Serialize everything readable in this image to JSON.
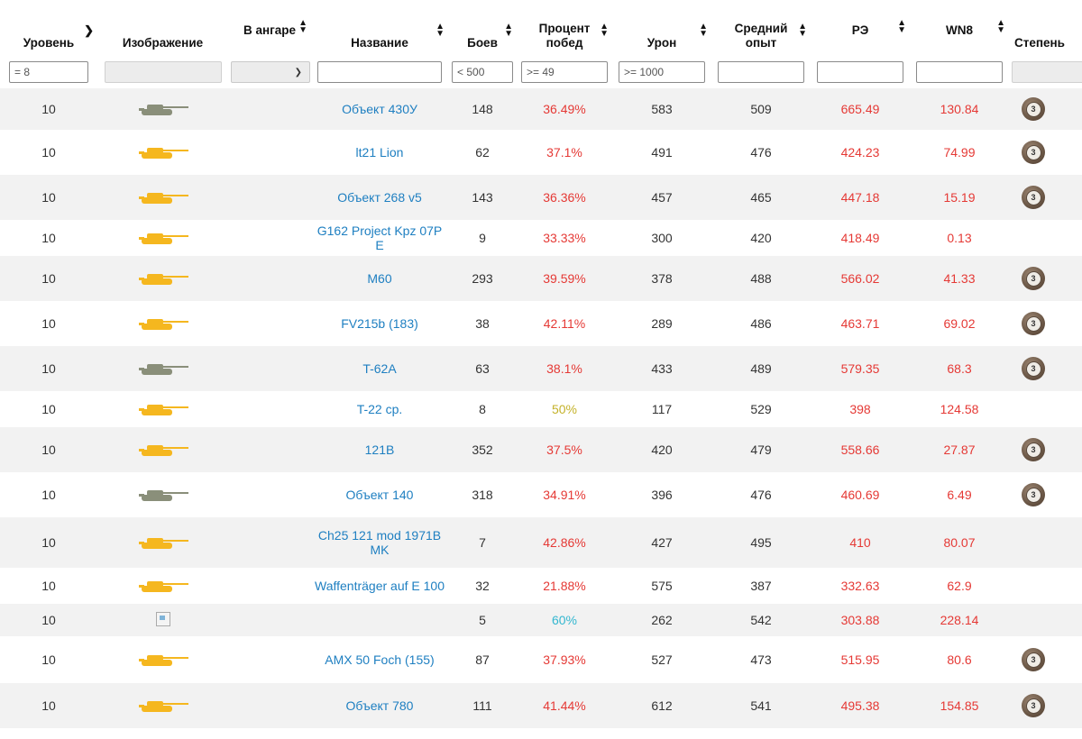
{
  "headers": {
    "level": "Уровень",
    "image": "Изображение",
    "in_hangar": "В ангаре",
    "name": "Название",
    "battles": "Боев",
    "win_pct_1": "Процент",
    "win_pct_2": "побед",
    "damage": "Урон",
    "avg_exp_1": "Средний",
    "avg_exp_2": "опыт",
    "re": "РЭ",
    "wn8": "WN8",
    "mastery": "Степень"
  },
  "filters": {
    "level": "= 8",
    "battles": "< 500",
    "win_pct": ">= 49",
    "damage": ">= 1000"
  },
  "rows": [
    {
      "level": "10",
      "name": "Объект 430У",
      "battles": "148",
      "win": "36.49%",
      "damage": "583",
      "exp": "509",
      "re": "665.49",
      "wn8": "130.84",
      "mastery": "3",
      "tank": "gray"
    },
    {
      "level": "10",
      "name": "lt21 Lion",
      "battles": "62",
      "win": "37.1%",
      "damage": "491",
      "exp": "476",
      "re": "424.23",
      "wn8": "74.99",
      "mastery": "3",
      "tank": "gold"
    },
    {
      "level": "10",
      "name": "Объект 268 v5",
      "battles": "143",
      "win": "36.36%",
      "damage": "457",
      "exp": "465",
      "re": "447.18",
      "wn8": "15.19",
      "mastery": "3",
      "tank": "gold"
    },
    {
      "level": "10",
      "name": "G162 Project Kpz 07P E",
      "battles": "9",
      "win": "33.33%",
      "damage": "300",
      "exp": "420",
      "re": "418.49",
      "wn8": "0.13",
      "mastery": "",
      "tank": "gold"
    },
    {
      "level": "10",
      "name": "M60",
      "battles": "293",
      "win": "39.59%",
      "damage": "378",
      "exp": "488",
      "re": "566.02",
      "wn8": "41.33",
      "mastery": "3",
      "tank": "gold"
    },
    {
      "level": "10",
      "name": "FV215b (183)",
      "battles": "38",
      "win": "42.11%",
      "damage": "289",
      "exp": "486",
      "re": "463.71",
      "wn8": "69.02",
      "mastery": "3",
      "tank": "gold"
    },
    {
      "level": "10",
      "name": "T-62A",
      "battles": "63",
      "win": "38.1%",
      "damage": "433",
      "exp": "489",
      "re": "579.35",
      "wn8": "68.3",
      "mastery": "3",
      "tank": "gray"
    },
    {
      "level": "10",
      "name": "T-22 ср.",
      "battles": "8",
      "win": "50%",
      "damage": "117",
      "exp": "529",
      "re": "398",
      "wn8": "124.58",
      "mastery": "",
      "tank": "gold"
    },
    {
      "level": "10",
      "name": "121B",
      "battles": "352",
      "win": "37.5%",
      "damage": "420",
      "exp": "479",
      "re": "558.66",
      "wn8": "27.87",
      "mastery": "3",
      "tank": "gold"
    },
    {
      "level": "10",
      "name": "Объект 140",
      "battles": "318",
      "win": "34.91%",
      "damage": "396",
      "exp": "476",
      "re": "460.69",
      "wn8": "6.49",
      "mastery": "3",
      "tank": "gray"
    },
    {
      "level": "10",
      "name": "Ch25 121 mod 1971B MK",
      "battles": "7",
      "win": "42.86%",
      "damage": "427",
      "exp": "495",
      "re": "410",
      "wn8": "80.07",
      "mastery": "",
      "tank": "gold"
    },
    {
      "level": "10",
      "name": "Waffenträger auf E 100",
      "battles": "32",
      "win": "21.88%",
      "damage": "575",
      "exp": "387",
      "re": "332.63",
      "wn8": "62.9",
      "mastery": "",
      "tank": "gold"
    },
    {
      "level": "10",
      "name": "",
      "battles": "5",
      "win": "60%",
      "damage": "262",
      "exp": "542",
      "re": "303.88",
      "wn8": "228.14",
      "mastery": "",
      "tank": "broken"
    },
    {
      "level": "10",
      "name": "AMX 50 Foch (155)",
      "battles": "87",
      "win": "37.93%",
      "damage": "527",
      "exp": "473",
      "re": "515.95",
      "wn8": "80.6",
      "mastery": "3",
      "tank": "gold"
    },
    {
      "level": "10",
      "name": "Объект 780",
      "battles": "111",
      "win": "41.44%",
      "damage": "612",
      "exp": "541",
      "re": "495.38",
      "wn8": "154.85",
      "mastery": "3",
      "tank": "gold"
    }
  ],
  "colors": {
    "name_link": "#1e7fc1",
    "stat_bad": "#e53935",
    "stat_avg": "#c4b22a",
    "stat_good": "#33b7d0",
    "tank_gold": "#f5b71f",
    "tank_gray": "#8a8f7a"
  }
}
